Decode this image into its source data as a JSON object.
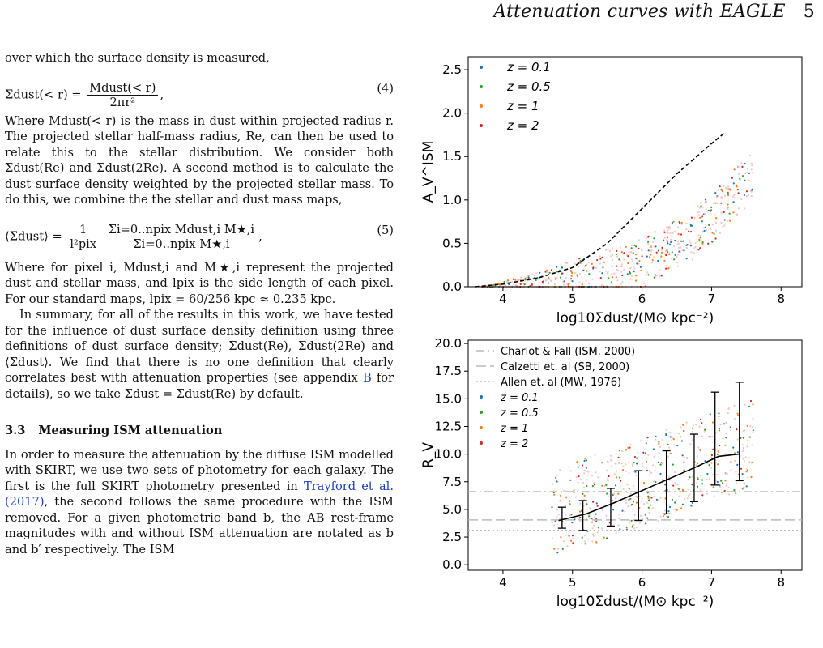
{
  "header": {
    "title": "Attenuation curves with EAGLE",
    "page": "5"
  },
  "text": {
    "p1": "over which the surface density is measured,",
    "eq4_lhs": "Σdust(< r) =",
    "eq4_num": "Mdust(< r)",
    "eq4_den": "2πr²",
    "eq4_no": "(4)",
    "p2": "Where Mdust(< r) is the mass in dust within projected radius r. The projected stellar half-mass radius, Re, can then be used to relate this to the stellar distribution. We consider both Σdust(Re) and Σdust(2Re). A second method is to calculate the dust surface density weighted by the projected stellar mass. To do this, we combine the the stellar and dust mass maps,",
    "eq5_lhs": "⟨Σdust⟩ =",
    "eq5_a_num": "1",
    "eq5_a_den": "l²pix",
    "eq5_b_num": "Σi=0..npix Mdust,i M★,i",
    "eq5_b_den": "Σi=0..npix M★,i",
    "eq5_no": "(5)",
    "p3": "Where for pixel i, Mdust,i and M★,i represent the projected dust and stellar mass, and lpix is the side length of each pixel. For our standard maps, lpix = 60/256 kpc ≈ 0.235 kpc.",
    "p4a": "In summary, for all of the results in this work, we have tested for the influence of dust surface density definition using three definitions of dust surface density; Σdust(Re), Σdust(2Re) and ⟨Σdust⟩. We find that there is no one definition that clearly correlates best with attenuation properties (see appendix ",
    "p4_link": "B",
    "p4b": " for details), so we take Σdust = Σdust(Re) by default.",
    "section_num": "3.3",
    "section_title": "Measuring ISM attenuation",
    "p5a": "In order to measure the attenuation by the diffuse ISM modelled with SKIRT, we use two sets of photometry for each galaxy. The first is the full SKIRT photometry presented in ",
    "p5_link": "Trayford et al. (2017)",
    "p5b": ", the second follows the same procedure with the ISM removed. For a given photometric band b, the AB rest-frame magnitudes with and without ISM attenuation are notated as b and b′ respectively. The ISM"
  },
  "chart_data": [
    {
      "type": "scatter",
      "xlabel": "log10Σdust/(M⊙ kpc⁻²)",
      "ylabel": "A_V^ISM",
      "xlim": [
        3.5,
        8.3
      ],
      "ylim": [
        0,
        2.65
      ],
      "xticks": [
        "4",
        "5",
        "6",
        "7",
        "8"
      ],
      "yticks": [
        "0.0",
        "0.5",
        "1.0",
        "1.5",
        "2.0",
        "2.5"
      ],
      "legend": [
        {
          "label": "z = 0.1",
          "color": "#1f77b4"
        },
        {
          "label": "z = 0.5",
          "color": "#2ca02c"
        },
        {
          "label": "z = 1",
          "color": "#ff7f0e"
        },
        {
          "label": "z = 2",
          "color": "#d62728"
        }
      ],
      "median_curve": {
        "x": [
          3.6,
          4.0,
          4.5,
          5.0,
          5.5,
          6.0,
          6.5,
          7.0,
          7.2
        ],
        "y": [
          0.0,
          0.03,
          0.1,
          0.22,
          0.5,
          0.9,
          1.3,
          1.65,
          1.78
        ]
      }
    },
    {
      "type": "scatter",
      "xlabel": "log10Σdust/(M⊙ kpc⁻²)",
      "ylabel": "R_V",
      "xlim": [
        3.5,
        8.3
      ],
      "ylim": [
        -0.5,
        20.3
      ],
      "xticks": [
        "4",
        "5",
        "6",
        "7",
        "8"
      ],
      "yticks": [
        "0.0",
        "2.5",
        "5.0",
        "7.5",
        "10.0",
        "12.5",
        "15.0",
        "17.5",
        "20.0"
      ],
      "reference_lines": [
        {
          "label": "Charlot & Fall (ISM, 2000)",
          "y": 6.6
        },
        {
          "label": "Calzetti et. al (SB, 2000)",
          "y": 4.05
        },
        {
          "label": "Allen et. al (MW, 1976)",
          "y": 3.1
        }
      ],
      "legend": [
        {
          "label": "z = 0.1",
          "color": "#1f77b4"
        },
        {
          "label": "z = 0.5",
          "color": "#2ca02c"
        },
        {
          "label": "z = 1",
          "color": "#ff7f0e"
        },
        {
          "label": "z = 2",
          "color": "#d62728"
        }
      ],
      "median_curve": {
        "x": [
          4.8,
          5.2,
          5.6,
          6.0,
          6.4,
          6.8,
          7.1,
          7.4
        ],
        "y": [
          4.0,
          4.6,
          5.6,
          6.7,
          7.8,
          8.9,
          9.8,
          10.0
        ]
      },
      "error_bars": [
        {
          "x": 4.85,
          "lo": 3.3,
          "hi": 5.2,
          "med": 4.1
        },
        {
          "x": 5.15,
          "lo": 3.1,
          "hi": 5.8,
          "med": 4.4
        },
        {
          "x": 5.55,
          "lo": 3.5,
          "hi": 6.9,
          "med": 5.3
        },
        {
          "x": 5.95,
          "lo": 4.0,
          "hi": 8.5,
          "med": 6.2
        },
        {
          "x": 6.35,
          "lo": 4.6,
          "hi": 10.3,
          "med": 7.4
        },
        {
          "x": 6.75,
          "lo": 5.7,
          "hi": 11.8,
          "med": 8.4
        },
        {
          "x": 7.05,
          "lo": 7.2,
          "hi": 15.6,
          "med": 9.6
        },
        {
          "x": 7.4,
          "lo": 7.6,
          "hi": 16.5,
          "med": 10.0
        }
      ]
    }
  ]
}
